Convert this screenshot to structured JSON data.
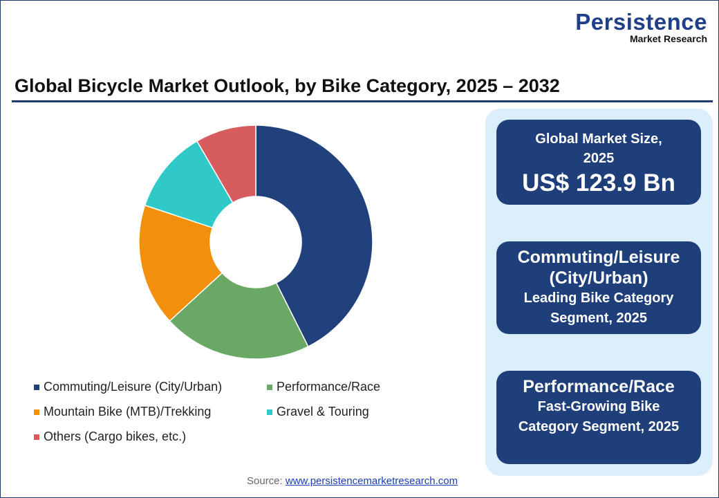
{
  "logo": {
    "line1": "Persistence",
    "line2": "Market Research"
  },
  "title": "Global Bicycle Market Outlook, by Bike Category, 2025 – 2032",
  "chart_data": {
    "type": "pie",
    "donut": true,
    "categories": [
      "Commuting/Leisure (City/Urban)",
      "Performance/Race",
      "Mountain Bike (MTB)/Trekking",
      "Gravel & Touring",
      "Others (Cargo bikes, etc.)"
    ],
    "values": [
      42.6,
      20.6,
      16.9,
      11.5,
      8.4
    ],
    "colors": [
      "#21417d",
      "#69a965",
      "#f28f0c",
      "#2fcac8",
      "#d65c5e"
    ],
    "legend": "bottom"
  },
  "cards": [
    {
      "label": "Global Market Size, 2025",
      "value": "US$ 123.9 Bn"
    },
    {
      "highlight": "Commuting/Leisure (City/Urban)",
      "label": "Leading Bike Category Segment, 2025"
    },
    {
      "highlight": "Performance/Race",
      "label": "Fast-Growing Bike Category Segment, 2025"
    }
  ],
  "source": {
    "prefix": "Source: ",
    "link": "www.persistencemarketresearch.com"
  }
}
